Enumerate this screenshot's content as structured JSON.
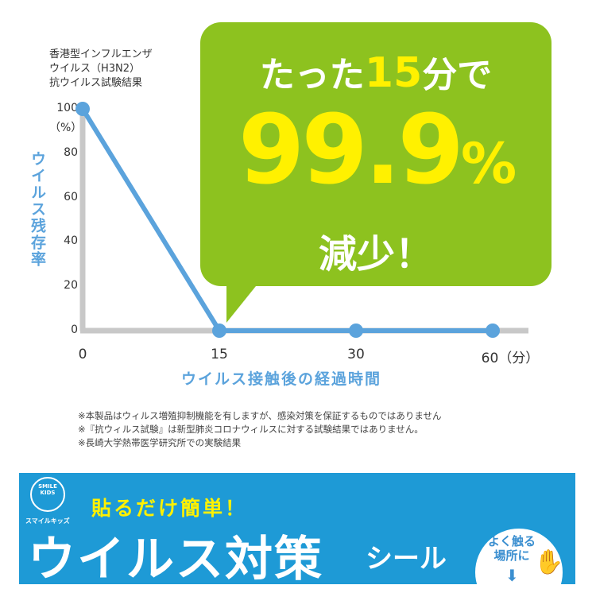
{
  "chart_data": {
    "type": "line",
    "title": "香港型インフルエンザ\nウイルス（H3N2）\n抗ウイルス試験結果",
    "xlabel": "ウイルス接触後の経過時間",
    "ylabel": "ウイルス残存率",
    "categories": [
      "0",
      "15",
      "30",
      "60（分）"
    ],
    "x": [
      0,
      15,
      30,
      60
    ],
    "values": [
      100,
      0,
      0,
      0
    ],
    "y_ticks": [
      "0",
      "20",
      "40",
      "60",
      "80",
      "100"
    ],
    "y_unit": "（%）",
    "ylim": [
      0,
      100
    ],
    "grid": false,
    "colors": {
      "line": "#5ba3dc",
      "axis": "#c8c8c8"
    }
  },
  "callout": {
    "before": "たった",
    "number": "15",
    "after": "分で",
    "big": "99.9",
    "percent": "%",
    "result": "減少！",
    "color": "#8dc21f",
    "accent": "#fff100"
  },
  "notes": [
    "※本製品はウィルス増殖抑制機能を有しますが、感染対策を保証するものではありません",
    "※『抗ウィルス試験』は新型肺炎コロナウィルスに対する試験結果ではありません。",
    "※長崎大学熱帯医学研究所での実験結果"
  ],
  "banner": {
    "logo": "SMILE KIDS",
    "logo_sub": "スマイルキッズ",
    "tagline": "貼るだけ簡単！",
    "title": "ウイルス対策",
    "title_suffix": "シール",
    "badge": "よく触る\n場所に",
    "color": "#1e9ad6"
  }
}
